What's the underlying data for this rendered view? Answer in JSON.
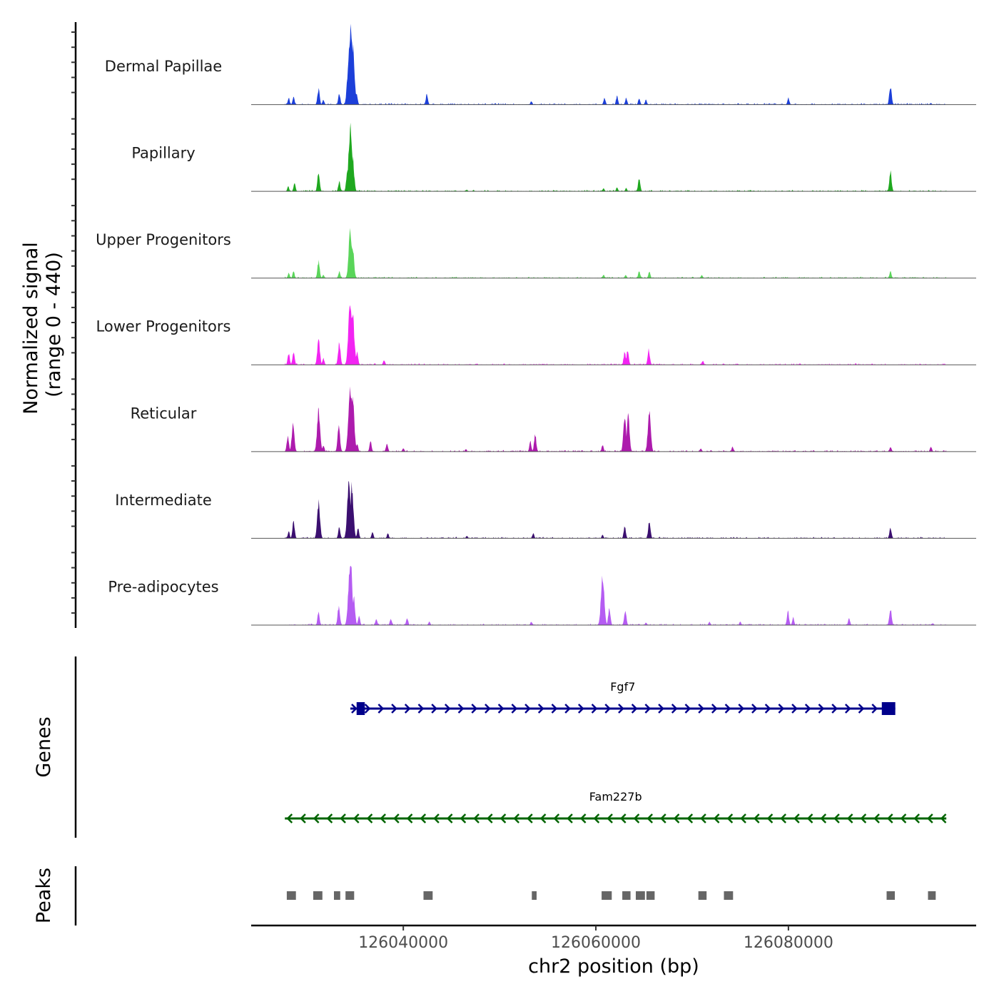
{
  "chart_data": {
    "type": "area",
    "title": "",
    "chromosome": "chr2",
    "xlabel": "chr2 position (bp)",
    "ylabel": "Normalized signal",
    "ylabel_sub": "(range 0 - 440)",
    "ylim": [
      0,
      440
    ],
    "xlim": [
      126024200,
      126099500
    ],
    "x_ticks": [
      126040000,
      126060000,
      126080000
    ],
    "x_tick_labels": [
      "126040000",
      "126060000",
      "126080000"
    ],
    "tracks": [
      {
        "name": "Dermal Papillae",
        "color": "#1c3fd9",
        "peaks": [
          [
            126028100,
            40
          ],
          [
            126028600,
            45
          ],
          [
            126031200,
            95
          ],
          [
            126031700,
            30
          ],
          [
            126033350,
            70
          ],
          [
            126034250,
            180
          ],
          [
            126034500,
            440
          ],
          [
            126034750,
            360
          ],
          [
            126035150,
            60
          ],
          [
            126042450,
            65
          ],
          [
            126053300,
            20
          ],
          [
            126060900,
            40
          ],
          [
            126062200,
            50
          ],
          [
            126063150,
            40
          ],
          [
            126064500,
            40
          ],
          [
            126065200,
            30
          ],
          [
            126080000,
            40
          ],
          [
            126090600,
            115
          ],
          [
            126094800,
            10
          ]
        ]
      },
      {
        "name": "Papillary",
        "color": "#1fa81f",
        "peaks": [
          [
            126028050,
            30
          ],
          [
            126028700,
            50
          ],
          [
            126031200,
            115
          ],
          [
            126033350,
            60
          ],
          [
            126034200,
            130
          ],
          [
            126034500,
            370
          ],
          [
            126034750,
            200
          ],
          [
            126046600,
            10
          ],
          [
            126060800,
            20
          ],
          [
            126062200,
            25
          ],
          [
            126063150,
            20
          ],
          [
            126064500,
            80
          ],
          [
            126090600,
            115
          ]
        ]
      },
      {
        "name": "Upper Progenitors",
        "color": "#5ad55a",
        "peaks": [
          [
            126028100,
            30
          ],
          [
            126028600,
            40
          ],
          [
            126031200,
            100
          ],
          [
            126031700,
            20
          ],
          [
            126033350,
            40
          ],
          [
            126034500,
            300
          ],
          [
            126034750,
            180
          ],
          [
            126060800,
            20
          ],
          [
            126063100,
            20
          ],
          [
            126064500,
            45
          ],
          [
            126065550,
            40
          ],
          [
            126071000,
            20
          ],
          [
            126090600,
            40
          ]
        ]
      },
      {
        "name": "Lower Progenitors",
        "color": "#f224f2",
        "peaks": [
          [
            126028100,
            70
          ],
          [
            126028600,
            80
          ],
          [
            126031200,
            160
          ],
          [
            126031700,
            40
          ],
          [
            126033350,
            130
          ],
          [
            126034500,
            400
          ],
          [
            126034750,
            300
          ],
          [
            126035200,
            80
          ],
          [
            126038000,
            30
          ],
          [
            126063000,
            80
          ],
          [
            126063300,
            95
          ],
          [
            126065500,
            90
          ],
          [
            126071100,
            25
          ]
        ]
      },
      {
        "name": "Reticular",
        "color": "#ad1bad",
        "peaks": [
          [
            126028000,
            90
          ],
          [
            126028550,
            170
          ],
          [
            126031200,
            250
          ],
          [
            126031700,
            40
          ],
          [
            126033300,
            150
          ],
          [
            126034500,
            400
          ],
          [
            126034750,
            300
          ],
          [
            126035200,
            50
          ],
          [
            126036600,
            60
          ],
          [
            126038300,
            50
          ],
          [
            126040000,
            20
          ],
          [
            126046500,
            15
          ],
          [
            126053200,
            60
          ],
          [
            126053700,
            100
          ],
          [
            126060700,
            40
          ],
          [
            126063000,
            200
          ],
          [
            126063350,
            210
          ],
          [
            126065550,
            240
          ],
          [
            126070900,
            20
          ],
          [
            126074200,
            30
          ],
          [
            126090600,
            30
          ],
          [
            126094800,
            30
          ]
        ]
      },
      {
        "name": "Intermediate",
        "color": "#3b0f70",
        "peaks": [
          [
            126028100,
            40
          ],
          [
            126028600,
            100
          ],
          [
            126031200,
            215
          ],
          [
            126033350,
            70
          ],
          [
            126034350,
            320
          ],
          [
            126034650,
            315
          ],
          [
            126035300,
            60
          ],
          [
            126036800,
            40
          ],
          [
            126038400,
            30
          ],
          [
            126046600,
            15
          ],
          [
            126053500,
            30
          ],
          [
            126060700,
            20
          ],
          [
            126063000,
            70
          ],
          [
            126065550,
            105
          ],
          [
            126090600,
            65
          ]
        ]
      },
      {
        "name": "Pre-adipocytes",
        "color": "#b55cf2",
        "peaks": [
          [
            126031200,
            75
          ],
          [
            126033300,
            115
          ],
          [
            126034500,
            395
          ],
          [
            126034850,
            170
          ],
          [
            126035400,
            55
          ],
          [
            126037200,
            40
          ],
          [
            126038700,
            40
          ],
          [
            126040400,
            45
          ],
          [
            126042700,
            20
          ],
          [
            126053300,
            20
          ],
          [
            126060700,
            300
          ],
          [
            126061400,
            100
          ],
          [
            126063050,
            90
          ],
          [
            126065200,
            15
          ],
          [
            126071800,
            20
          ],
          [
            126075000,
            20
          ],
          [
            126079950,
            80
          ],
          [
            126080500,
            45
          ],
          [
            126086300,
            40
          ],
          [
            126090600,
            100
          ],
          [
            126095000,
            10
          ]
        ]
      }
    ],
    "genes": {
      "axis_label": "Genes",
      "items": [
        {
          "name": "Fgf7",
          "strand": "+",
          "start": 126034500,
          "end": 126091100,
          "color": "#00008b",
          "exons": [
            [
              126035150,
              126036000
            ],
            [
              126089700,
              126091100
            ]
          ]
        },
        {
          "name": "Fam227b",
          "strand": "-",
          "start": 126027700,
          "end": 126096400,
          "color": "#006400",
          "exons": []
        }
      ]
    },
    "peaks_track": {
      "axis_label": "Peaks",
      "color": "#666666",
      "regions": [
        [
          126027900,
          126028850
        ],
        [
          126030650,
          126031600
        ],
        [
          126032800,
          126033450
        ],
        [
          126034000,
          126034900
        ],
        [
          126042100,
          126043050
        ],
        [
          126053350,
          126053850
        ],
        [
          126060600,
          126061650
        ],
        [
          126062750,
          126063600
        ],
        [
          126064150,
          126065100
        ],
        [
          126065250,
          126066100
        ],
        [
          126070650,
          126071500
        ],
        [
          126073300,
          126074250
        ],
        [
          126090200,
          126091050
        ],
        [
          126094500,
          126095300
        ]
      ]
    }
  }
}
